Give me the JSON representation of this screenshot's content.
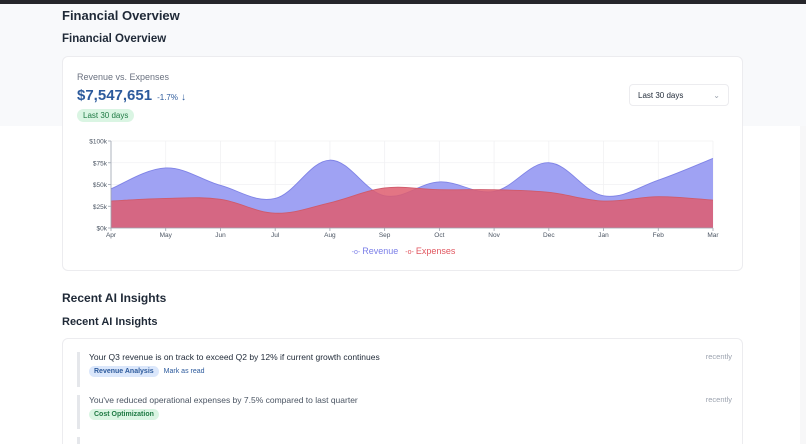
{
  "page": {
    "title": "Financial Overview"
  },
  "financial": {
    "section_title": "Financial Overview",
    "card": {
      "subtitle": "Revenue vs. Expenses",
      "amount": "$7,547,651",
      "change": "-1.7%",
      "change_icon": "arrow-down-icon",
      "period_badge": "Last 30 days",
      "period_select": {
        "selected": "Last 30 days",
        "icon": "chevron-down-icon"
      }
    },
    "legend": {
      "revenue": "Revenue",
      "expenses": "Expenses"
    }
  },
  "chart_data": {
    "type": "area",
    "title": "Revenue vs. Expenses",
    "xlabel": "",
    "ylabel": "",
    "categories": [
      "Apr",
      "May",
      "Jun",
      "Jul",
      "Aug",
      "Sep",
      "Oct",
      "Nov",
      "Dec",
      "Jan",
      "Feb",
      "Mar"
    ],
    "series": [
      {
        "name": "Revenue",
        "color": "#8c90f0",
        "values": [
          45000,
          69000,
          49000,
          34000,
          78000,
          37000,
          53000,
          42000,
          75000,
          37000,
          55000,
          80000
        ]
      },
      {
        "name": "Expenses",
        "color": "#e15760",
        "values": [
          31000,
          34000,
          33000,
          17000,
          29000,
          46000,
          44000,
          44000,
          41000,
          31000,
          36000,
          32000
        ]
      }
    ],
    "yticks": [
      "$0k",
      "$25k",
      "$50k",
      "$75k",
      "$100k"
    ],
    "ylim": [
      0,
      100000
    ],
    "grid": true,
    "legend_position": "bottom"
  },
  "insights": {
    "section_title": "Recent AI Insights",
    "subsection_title": "Recent AI Insights",
    "items": [
      {
        "text": "Your Q3 revenue is on track to exceed Q2 by 12% if current growth continues",
        "tag": "Revenue Analysis",
        "action": "Mark as read",
        "time": "recently"
      },
      {
        "text": "You've reduced operational expenses by 7.5% compared to last quarter",
        "tag": "Cost Optimization",
        "time": "recently"
      }
    ]
  }
}
